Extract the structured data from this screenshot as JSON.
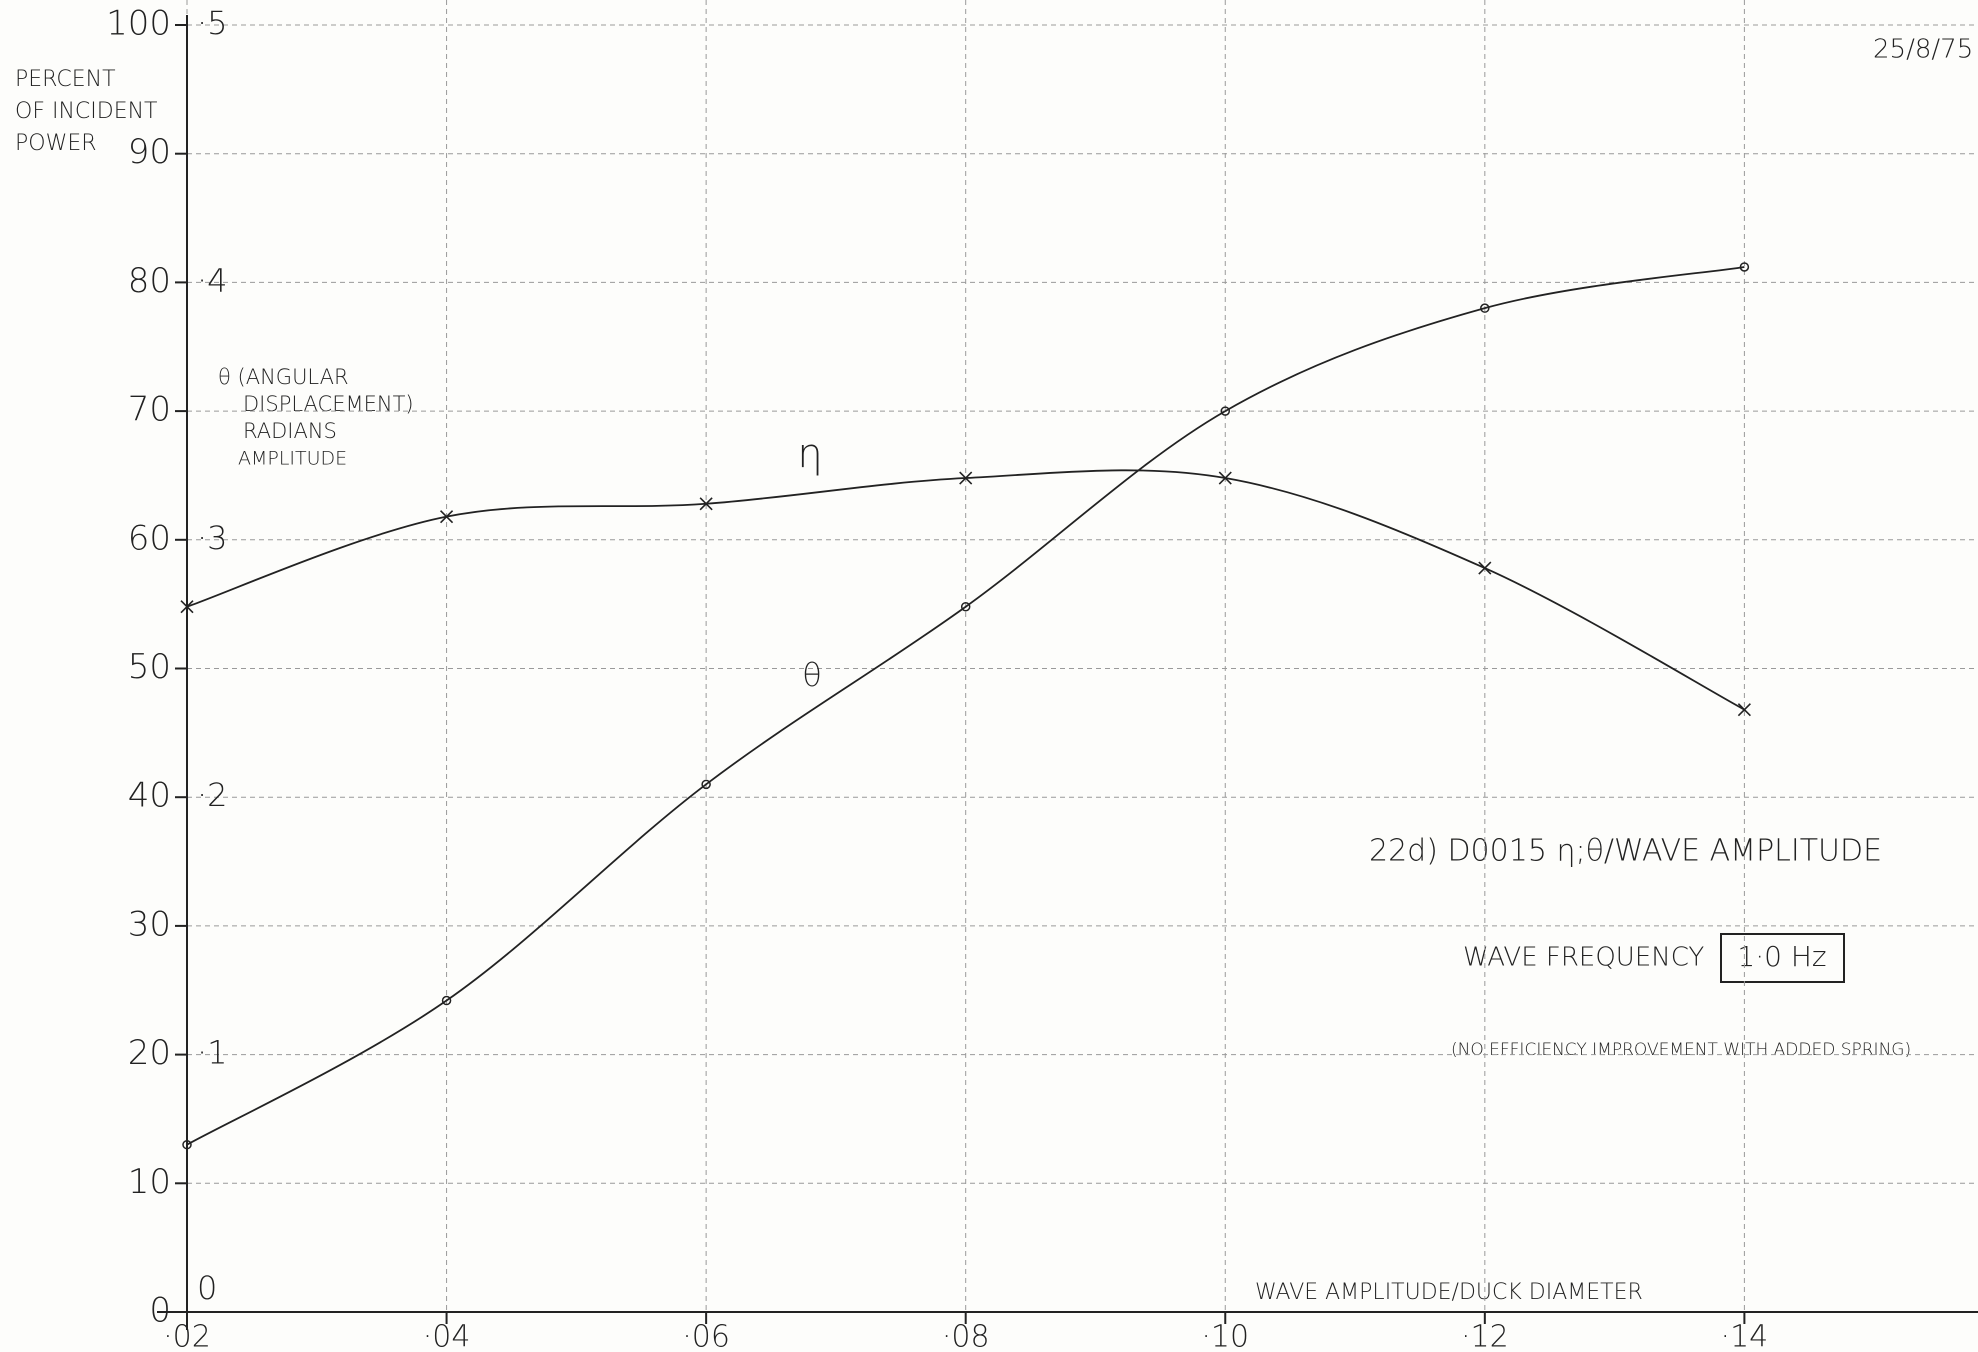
{
  "chart_data": {
    "type": "line",
    "title": "22d) D0015 η;θ/WAVE AMPLITUDE",
    "date": "25/8/75",
    "y_label": [
      "PERCENT",
      "OF INCIDENT",
      "POWER"
    ],
    "y2_label": [
      "θ (ANGULAR",
      "DISPLACEMENT)",
      "RADIANS",
      "AMPLITUDE"
    ],
    "x_label": "WAVE AMPLITUDE/DUCK DIAMETER",
    "annotations": {
      "frequency_label": "WAVE FREQUENCY",
      "frequency_value": "1·0 Hz",
      "note": "(NO EFFICIENCY IMPROVEMENT WITH ADDED SPRING)"
    },
    "x": [
      0.02,
      0.04,
      0.06,
      0.08,
      0.1,
      0.12,
      0.14
    ],
    "series": [
      {
        "name": "η",
        "color": "#222222",
        "marker": "x",
        "values": [
          54.8,
          61.8,
          62.8,
          64.8,
          64.8,
          57.8,
          46.8
        ]
      },
      {
        "name": "θ",
        "color": "#222222",
        "marker": "o",
        "axis": "y2",
        "values": [
          0.065,
          0.121,
          0.205,
          0.274,
          0.35,
          0.39,
          0.406
        ]
      }
    ],
    "xlim": [
      0.02,
      0.158
    ],
    "ylim": [
      0,
      100
    ],
    "y2lim": [
      0,
      0.5
    ],
    "xticks": [
      {
        "value": 0.02,
        "label": "·02"
      },
      {
        "value": 0.04,
        "label": "·04"
      },
      {
        "value": 0.06,
        "label": "·06"
      },
      {
        "value": 0.08,
        "label": "·08"
      },
      {
        "value": 0.1,
        "label": "·10"
      },
      {
        "value": 0.12,
        "label": "·12"
      },
      {
        "value": 0.14,
        "label": "·14"
      }
    ],
    "yticks": [
      0,
      10,
      20,
      30,
      40,
      50,
      60,
      70,
      80,
      90,
      100
    ],
    "y2ticks": [
      0,
      {
        "value": 0.1,
        "label": "·1"
      },
      {
        "value": 0.2,
        "label": "·2"
      },
      {
        "value": 0.3,
        "label": "·3"
      },
      {
        "value": 0.4,
        "label": "·4"
      },
      {
        "value": 0.5,
        "label": "·5"
      }
    ],
    "grid": true
  }
}
